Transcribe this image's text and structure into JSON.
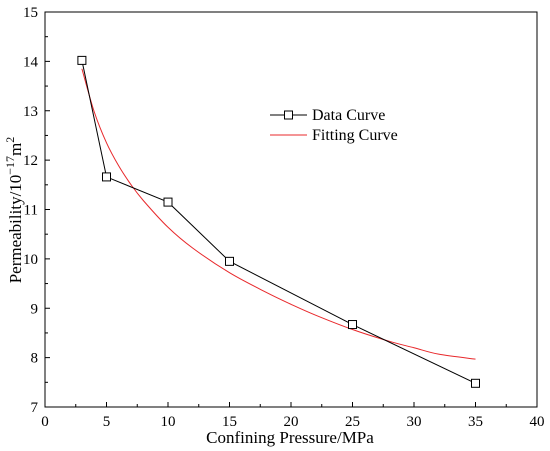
{
  "chart_data": {
    "type": "line",
    "xlabel": "Confining Pressure/MPa",
    "ylabel_main": "Permeability/10",
    "ylabel_exp": "−17",
    "ylabel_unit": "m",
    "ylabel_unit_exp": "2",
    "xlim": [
      0,
      40
    ],
    "ylim": [
      7,
      15
    ],
    "xticks": [
      "0",
      "5",
      "10",
      "15",
      "20",
      "25",
      "30",
      "35",
      "40"
    ],
    "yticks": [
      "7",
      "8",
      "9",
      "10",
      "11",
      "12",
      "13",
      "14",
      "15"
    ],
    "grid": false,
    "legend_position": "upper-right",
    "series": [
      {
        "name": "Data Curve",
        "color": "#000000",
        "marker": "open-square",
        "x": [
          3,
          5,
          10,
          15,
          25,
          35
        ],
        "y": [
          14.02,
          11.66,
          11.15,
          9.95,
          8.67,
          7.48
        ]
      },
      {
        "name": "Fitting Curve",
        "color": "#e8282b",
        "marker": "none",
        "x": [
          3,
          4,
          5,
          6,
          7,
          8,
          10,
          12,
          15,
          18,
          20,
          22,
          25,
          28,
          30,
          32,
          35
        ],
        "y": [
          13.85,
          12.98,
          12.35,
          11.88,
          11.5,
          11.18,
          10.64,
          10.22,
          9.72,
          9.32,
          9.08,
          8.86,
          8.57,
          8.33,
          8.2,
          8.07,
          7.97
        ]
      }
    ]
  }
}
